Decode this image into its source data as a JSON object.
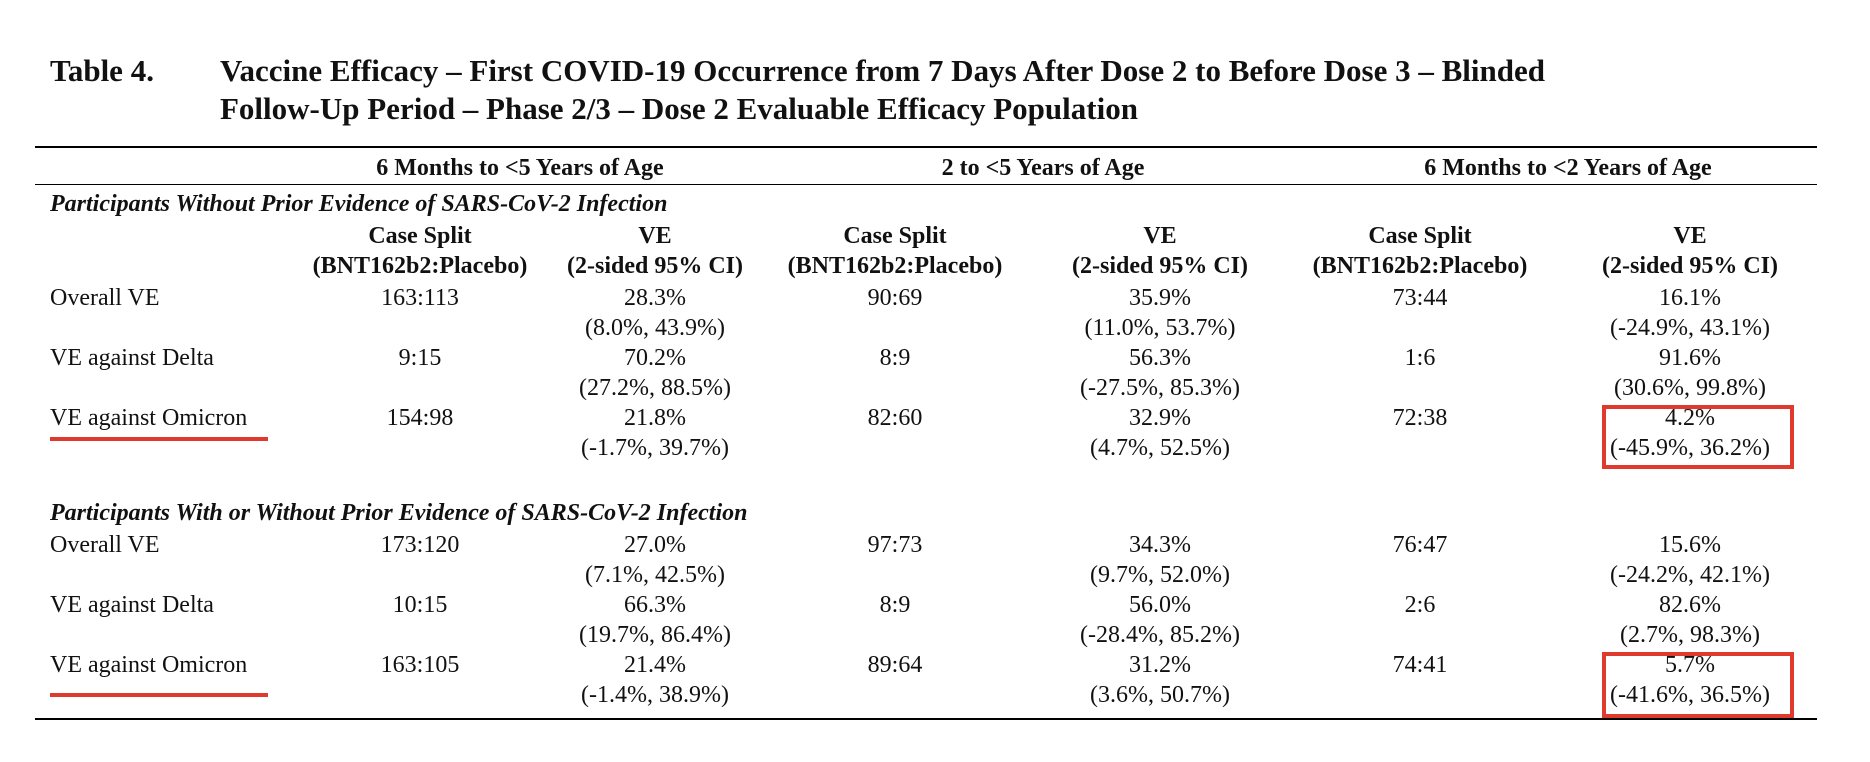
{
  "title": {
    "number": "Table 4.",
    "line1": "Vaccine Efficacy – First COVID-19 Occurrence from 7 Days After Dose 2 to Before Dose 3 – Blinded",
    "line2": "Follow-Up Period – Phase 2/3 – Dose 2 Evaluable Efficacy Population"
  },
  "age_groups": [
    "6 Months to <5 Years of Age",
    "2 to <5 Years of Age",
    "6 Months to <2 Years of Age"
  ],
  "subheaders": {
    "case_split": "Case Split",
    "case_split_sub": "(BNT162b2:Placebo)",
    "ve": "VE",
    "ve_sub": "(2-sided 95% CI)"
  },
  "sections": [
    {
      "title": "Participants Without Prior Evidence of SARS-CoV-2 Infection",
      "rows": [
        {
          "label": "Overall VE",
          "cells": [
            [
              "163:113",
              "28.3%",
              "(8.0%, 43.9%)"
            ],
            [
              "90:69",
              "35.9%",
              "(11.0%, 53.7%)"
            ],
            [
              "73:44",
              "16.1%",
              "(-24.9%, 43.1%)"
            ]
          ]
        },
        {
          "label": "VE against Delta",
          "cells": [
            [
              "9:15",
              "70.2%",
              "(27.2%, 88.5%)"
            ],
            [
              "8:9",
              "56.3%",
              "(-27.5%, 85.3%)"
            ],
            [
              "1:6",
              "91.6%",
              "(30.6%, 99.8%)"
            ]
          ]
        },
        {
          "label": "VE against Omicron",
          "cells": [
            [
              "154:98",
              "21.8%",
              "(-1.7%, 39.7%)"
            ],
            [
              "82:60",
              "32.9%",
              "(4.7%, 52.5%)"
            ],
            [
              "72:38",
              "4.2%",
              "(-45.9%, 36.2%)"
            ]
          ]
        }
      ]
    },
    {
      "title": "Participants With or Without Prior Evidence of SARS-CoV-2 Infection",
      "rows": [
        {
          "label": "Overall VE",
          "cells": [
            [
              "173:120",
              "27.0%",
              "(7.1%, 42.5%)"
            ],
            [
              "97:73",
              "34.3%",
              "(9.7%, 52.0%)"
            ],
            [
              "76:47",
              "15.6%",
              "(-24.2%, 42.1%)"
            ]
          ]
        },
        {
          "label": "VE against Delta",
          "cells": [
            [
              "10:15",
              "66.3%",
              "(19.7%, 86.4%)"
            ],
            [
              "8:9",
              "56.0%",
              "(-28.4%, 85.2%)"
            ],
            [
              "2:6",
              "82.6%",
              "(2.7%, 98.3%)"
            ]
          ]
        },
        {
          "label": "VE against Omicron",
          "cells": [
            [
              "163:105",
              "21.4%",
              "(-1.4%, 38.9%)"
            ],
            [
              "89:64",
              "31.2%",
              "(3.6%, 50.7%)"
            ],
            [
              "74:41",
              "5.7%",
              "(-41.6%, 36.5%)"
            ]
          ]
        }
      ]
    }
  ],
  "highlight_color": "#e03a2f"
}
